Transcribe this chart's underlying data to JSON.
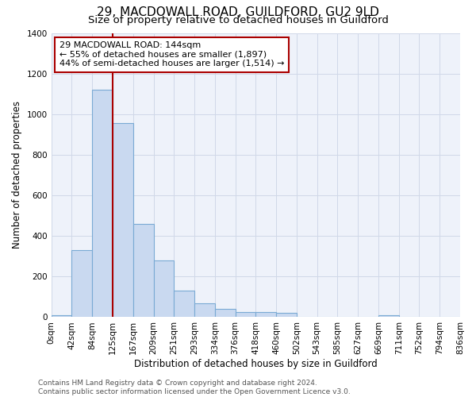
{
  "title1": "29, MACDOWALL ROAD, GUILDFORD, GU2 9LD",
  "title2": "Size of property relative to detached houses in Guildford",
  "xlabel": "Distribution of detached houses by size in Guildford",
  "ylabel": "Number of detached properties",
  "bar_values": [
    10,
    330,
    1120,
    955,
    460,
    280,
    130,
    70,
    40,
    25,
    25,
    20,
    0,
    0,
    0,
    0,
    10,
    0,
    0,
    0
  ],
  "bar_labels": [
    "0sqm",
    "42sqm",
    "84sqm",
    "125sqm",
    "167sqm",
    "209sqm",
    "251sqm",
    "293sqm",
    "334sqm",
    "376sqm",
    "418sqm",
    "460sqm",
    "502sqm",
    "543sqm",
    "585sqm",
    "627sqm",
    "669sqm",
    "711sqm",
    "752sqm",
    "794sqm",
    "836sqm"
  ],
  "bar_color": "#c9d9f0",
  "bar_edge_color": "#7aaad4",
  "vline_x": 2.5,
  "vline_color": "#aa0000",
  "annotation_text": "29 MACDOWALL ROAD: 144sqm\n← 55% of detached houses are smaller (1,897)\n44% of semi-detached houses are larger (1,514) →",
  "annotation_box_color": "#aa0000",
  "ylim": [
    0,
    1400
  ],
  "yticks": [
    0,
    200,
    400,
    600,
    800,
    1000,
    1200,
    1400
  ],
  "grid_color": "#d0d8e8",
  "bg_color": "#eef2fa",
  "footer": "Contains HM Land Registry data © Crown copyright and database right 2024.\nContains public sector information licensed under the Open Government Licence v3.0.",
  "title_fontsize": 11,
  "subtitle_fontsize": 9.5,
  "label_fontsize": 8.5,
  "tick_fontsize": 7.5,
  "footer_fontsize": 6.5
}
